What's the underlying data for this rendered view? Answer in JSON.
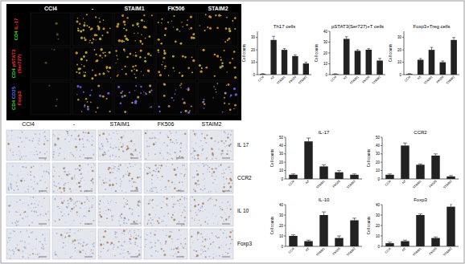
{
  "images": {
    "fluorescence": {
      "columns": [
        "CCl4",
        "-",
        "STAIM1",
        "FK506",
        "STAIM2"
      ],
      "rows": [
        [
          {
            "text": "CD4",
            "color": "#33dd33"
          },
          {
            "text": "IL-17",
            "color": "#ff3333"
          }
        ],
        [
          {
            "text": "CD4",
            "color": "#33dd33"
          },
          {
            "text": "pSTAT3",
            "color": "#ff3333"
          },
          {
            "text": "(Ser727)",
            "color": "#ff3333"
          }
        ],
        [
          {
            "text": "CD4",
            "color": "#33dd33"
          },
          {
            "text": "CD25",
            "color": "#5577ff"
          },
          {
            "text": "Foxp3",
            "color": "#ff3333"
          }
        ]
      ]
    },
    "ihc": {
      "columns": [
        "CCl4",
        "-",
        "STAIM1",
        "FK506",
        "STAIM2"
      ],
      "rows": [
        "IL 17",
        "CCR2",
        "IL 10",
        "Foxp3"
      ]
    }
  },
  "chart_data": [
    {
      "type": "bar",
      "title": "Th17 cells",
      "y_label": "Cell counts",
      "categories": [
        "CCl4",
        "NT",
        "STAIM1",
        "FK506",
        "STAIM2"
      ],
      "values": [
        0.5,
        28,
        20,
        15,
        9
      ],
      "errors": [
        0.3,
        3,
        1,
        1,
        1
      ],
      "ylim": [
        0,
        35
      ],
      "yticks": [
        0,
        10,
        20,
        30
      ],
      "color": "#222222"
    },
    {
      "type": "bar",
      "title": "pSTAT3(Ser727)+T cells",
      "y_label": "Cell counts",
      "categories": [
        "CCl4",
        "NT",
        "STAIM1",
        "FK506",
        "STAIM2"
      ],
      "values": [
        0.5,
        33,
        22,
        23,
        13
      ],
      "errors": [
        0.3,
        2,
        1,
        1,
        2
      ],
      "ylim": [
        0,
        40
      ],
      "yticks": [
        0,
        10,
        20,
        30,
        40
      ],
      "color": "#222222"
    },
    {
      "type": "bar",
      "title": "Foxp3+Treg cells",
      "y_label": "Cell counts",
      "categories": [
        "CCl4",
        "NT",
        "STAIM1",
        "FK506",
        "STAIM2"
      ],
      "values": [
        0.5,
        12,
        20,
        10,
        28
      ],
      "errors": [
        0.3,
        1,
        2,
        1,
        2
      ],
      "ylim": [
        0,
        35
      ],
      "yticks": [
        0,
        10,
        20,
        30
      ],
      "color": "#222222"
    },
    {
      "type": "bar",
      "title": "IL-17",
      "y_label": "Cell counts",
      "categories": [
        "CCl4",
        "NT",
        "STAIM1",
        "FK506",
        "STAIM2"
      ],
      "values": [
        5,
        45,
        15,
        8,
        5
      ],
      "errors": [
        1,
        4,
        2,
        2,
        1
      ],
      "ylim": [
        0,
        50
      ],
      "yticks": [
        0,
        10,
        20,
        30,
        40,
        50
      ],
      "color": "#222222"
    },
    {
      "type": "bar",
      "title": "CCR2",
      "y_label": "Cell counts",
      "categories": [
        "CCl4",
        "NT",
        "STAIM1",
        "FK506",
        "STAIM2"
      ],
      "values": [
        5,
        40,
        17,
        28,
        3
      ],
      "errors": [
        1,
        3,
        1,
        2,
        1
      ],
      "ylim": [
        0,
        50
      ],
      "yticks": [
        0,
        10,
        20,
        30,
        40,
        50
      ],
      "color": "#222222"
    },
    {
      "type": "bar",
      "title": "IL-10",
      "y_label": "Cell counts",
      "categories": [
        "CCl4",
        "NT",
        "STAIM1",
        "FK506",
        "STAIM2"
      ],
      "values": [
        10,
        5,
        30,
        8,
        25
      ],
      "errors": [
        1,
        1,
        3,
        2,
        2
      ],
      "ylim": [
        0,
        40
      ],
      "yticks": [
        0,
        10,
        20,
        30,
        40
      ],
      "color": "#222222"
    },
    {
      "type": "bar",
      "title": "Foxp3",
      "y_label": "Cell counts",
      "categories": [
        "CCl4",
        "NT",
        "STAIM1",
        "FK506",
        "STAIM2"
      ],
      "values": [
        3,
        5,
        30,
        8,
        38
      ],
      "errors": [
        1,
        1,
        1,
        1,
        3
      ],
      "ylim": [
        0,
        40
      ],
      "yticks": [
        0,
        10,
        20,
        30,
        40
      ],
      "color": "#222222"
    }
  ]
}
